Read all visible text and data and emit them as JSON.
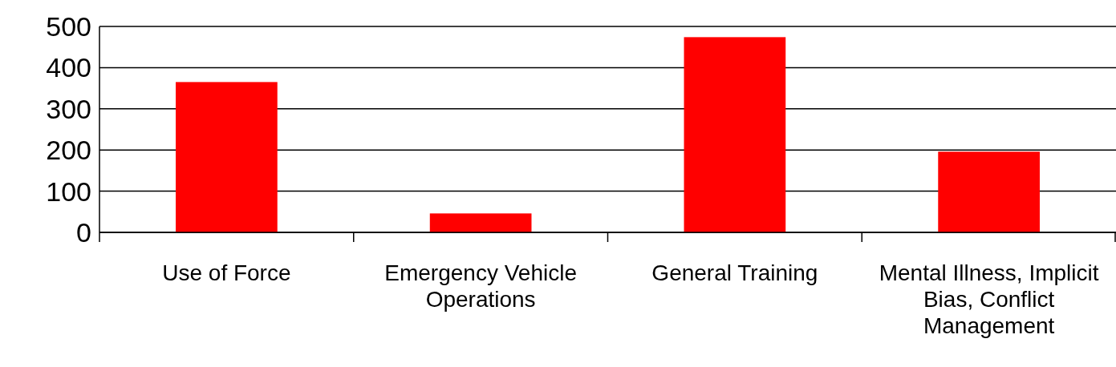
{
  "chart_data": {
    "type": "bar",
    "categories": [
      "Use of Force",
      "Emergency Vehicle Operations",
      "General Training",
      "Mental Illness, Implicit Bias, Conflict Management"
    ],
    "values": [
      365,
      46,
      474,
      196
    ],
    "color": "#ff0000",
    "ylim": [
      0,
      500
    ],
    "yticks": [
      0,
      100,
      200,
      300,
      400,
      500
    ],
    "grid": "y"
  }
}
